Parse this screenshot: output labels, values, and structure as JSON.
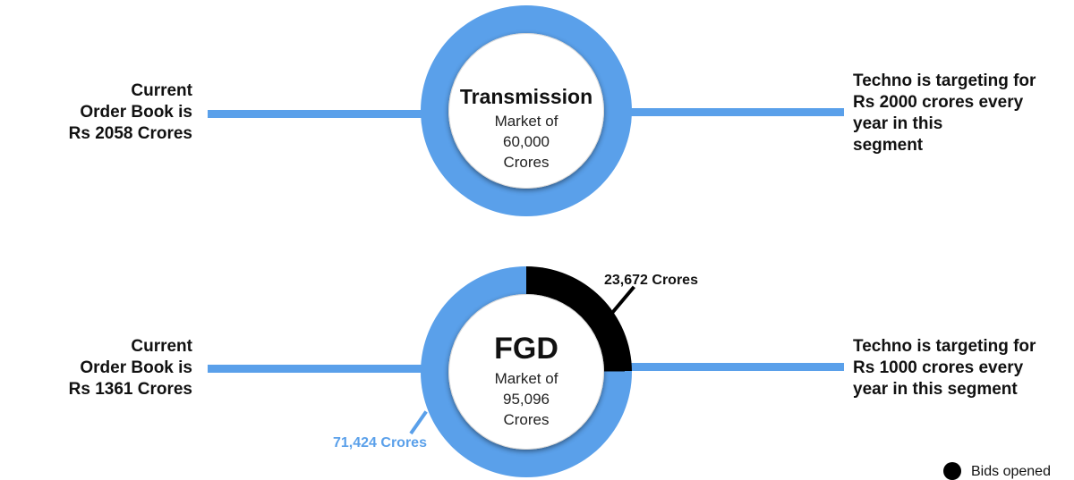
{
  "colors": {
    "accent_blue": "#5aa0ea",
    "segment_black": "#000000",
    "label_blue": "#5aa0ea"
  },
  "transmission": {
    "left_text": [
      "Current",
      "Order Book is",
      "Rs 2058 Crores"
    ],
    "title": "Transmission",
    "market_lines": [
      "Market of",
      "60,000",
      "Crores"
    ],
    "right_text": [
      "Techno is targeting for",
      "Rs 2000 crores every",
      "year in this",
      "segment"
    ]
  },
  "fgd": {
    "left_text": [
      "Current",
      "Order Book is",
      "Rs 1361 Crores"
    ],
    "title": "FGD",
    "market_lines": [
      "Market of",
      "95,096",
      "Crores"
    ],
    "right_text": [
      "Techno is targeting for",
      "Rs 1000 crores every",
      "year in this segment"
    ],
    "segments": [
      {
        "label": "23,672 Crores",
        "value": 23672,
        "color": "#000000"
      },
      {
        "label": "71,424 Crores",
        "value": 71424,
        "color": "#5aa0ea"
      }
    ]
  },
  "legend": {
    "item_label": "Bids opened"
  }
}
